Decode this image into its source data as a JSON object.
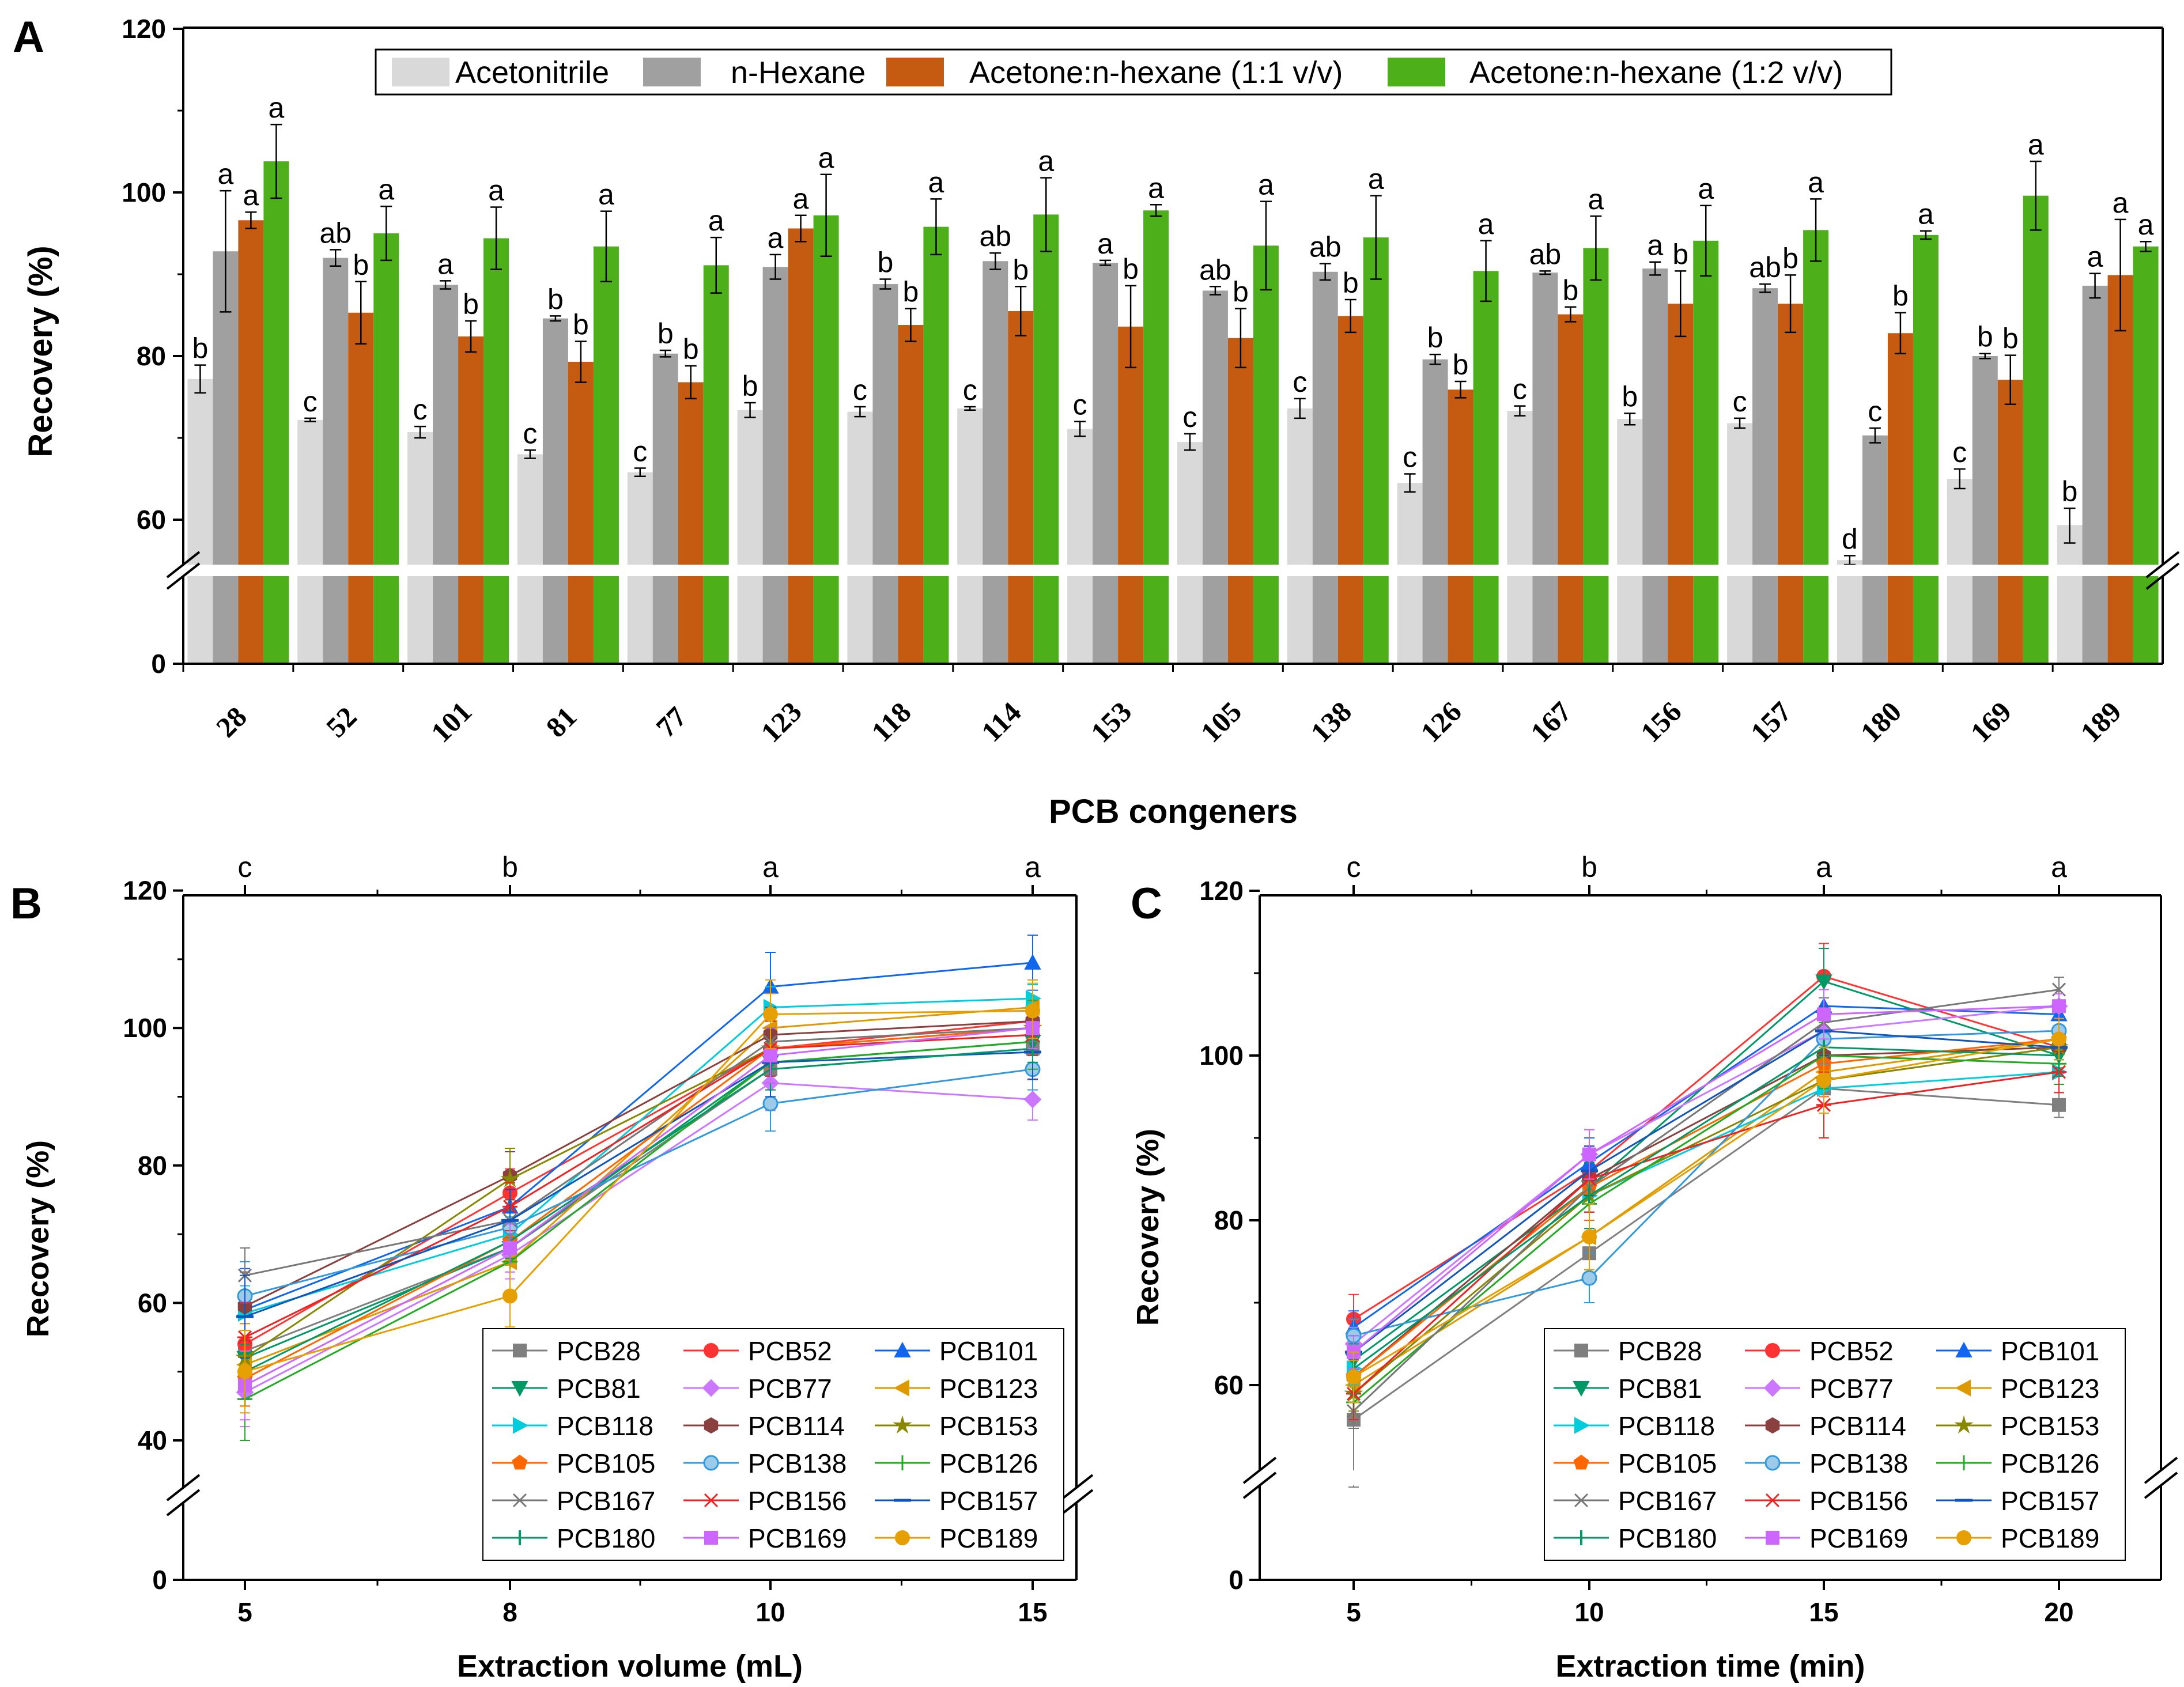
{
  "chart_data": [
    {
      "panel": "A",
      "type": "bar",
      "xlabel": "PCB congeners",
      "ylabel": "Recovery (%)",
      "ylim": [
        0,
        120
      ],
      "axis_break": [
        0,
        55
      ],
      "yticks": [
        0,
        60,
        80,
        100,
        120
      ],
      "categories": [
        "28",
        "52",
        "101",
        "81",
        "77",
        "123",
        "118",
        "114",
        "153",
        "105",
        "138",
        "126",
        "167",
        "156",
        "157",
        "180",
        "169",
        "189"
      ],
      "legend": {
        "position": "top-center"
      },
      "series": [
        {
          "name": "Acetonitrile",
          "color": "#d9d9d9",
          "values": [
            77.2,
            72.2,
            70.7,
            68.0,
            65.8,
            73.4,
            73.2,
            73.6,
            71.1,
            69.5,
            73.6,
            64.5,
            73.3,
            72.3,
            71.8,
            55.5,
            65.0,
            59.4
          ],
          "errors": [
            1.7,
            0.2,
            0.7,
            0.5,
            0.5,
            0.9,
            0.6,
            0.2,
            0.9,
            1.0,
            1.2,
            1.1,
            0.6,
            0.7,
            0.6,
            0.5,
            1.2,
            2.0
          ],
          "letters": [
            "b",
            "c",
            "c",
            "c",
            "c",
            "b",
            "c",
            "c",
            "c",
            "c",
            "c",
            "c",
            "c",
            "b",
            "c",
            "d",
            "c",
            "b"
          ]
        },
        {
          "name": "n-Hexane",
          "color": "#a0a0a0",
          "values": [
            92.8,
            92.0,
            88.7,
            84.6,
            80.3,
            90.9,
            88.8,
            91.6,
            91.4,
            88.0,
            90.3,
            79.6,
            90.2,
            90.7,
            88.3,
            70.3,
            80.0,
            88.6
          ],
          "errors": [
            7.4,
            1.0,
            0.5,
            0.3,
            0.4,
            1.5,
            0.6,
            1.0,
            0.3,
            0.5,
            1.0,
            0.6,
            0.2,
            0.8,
            0.5,
            0.9,
            0.3,
            1.5
          ],
          "letters": [
            "a",
            "ab",
            "a",
            "b",
            "b",
            "a",
            "b",
            "ab",
            "a",
            "ab",
            "ab",
            "b",
            "ab",
            "a",
            "ab",
            "c",
            "b",
            "a"
          ]
        },
        {
          "name": "Acetone:n-hexane (1:1 v/v)",
          "color": "#c55a11",
          "values": [
            96.6,
            85.3,
            82.4,
            79.3,
            76.8,
            95.6,
            83.8,
            85.5,
            83.6,
            82.2,
            84.9,
            75.9,
            85.1,
            86.4,
            86.4,
            82.8,
            77.1,
            89.9
          ],
          "errors": [
            1.0,
            3.8,
            1.9,
            2.5,
            2.0,
            1.6,
            2.0,
            3.0,
            5.0,
            3.6,
            2.0,
            1.0,
            0.9,
            4.0,
            3.5,
            2.5,
            3.0,
            6.8
          ],
          "letters": [
            "a",
            "b",
            "b",
            "b",
            "b",
            "a",
            "b",
            "b",
            "b",
            "b",
            "b",
            "b",
            "b",
            "b",
            "b",
            "b",
            "b",
            "a"
          ]
        },
        {
          "name": "Acetone:n-hexane (1:2 v/v)",
          "color": "#4daf1a",
          "values": [
            103.8,
            95.0,
            94.4,
            93.4,
            91.1,
            97.2,
            95.8,
            97.3,
            97.8,
            93.5,
            94.5,
            90.4,
            93.2,
            94.1,
            95.4,
            94.8,
            99.6,
            93.4
          ],
          "errors": [
            4.5,
            3.3,
            3.8,
            4.3,
            3.4,
            5.0,
            3.4,
            4.5,
            0.7,
            5.4,
            5.1,
            3.7,
            3.9,
            4.3,
            3.8,
            0.5,
            4.2,
            0.6
          ],
          "letters": [
            "a",
            "a",
            "a",
            "a",
            "a",
            "a",
            "a",
            "a",
            "a",
            "a",
            "a",
            "a",
            "a",
            "a",
            "a",
            "a",
            "a",
            "a"
          ]
        }
      ]
    },
    {
      "panel": "B",
      "type": "line",
      "xlabel": "Extraction volume (mL)",
      "ylabel": "Recovery (%)",
      "x": [
        "5",
        "8",
        "10",
        "15"
      ],
      "top_letters": [
        "c",
        "b",
        "a",
        "a"
      ],
      "ylim": [
        0,
        120
      ],
      "axis_break": [
        0,
        35
      ],
      "yticks": [
        0,
        40,
        60,
        80,
        100,
        120
      ],
      "legend": {
        "position": "bottom-right"
      },
      "series": [
        {
          "name": "PCB28",
          "color": "#7f7f7f",
          "marker": "square",
          "values": [
            53,
            68,
            94,
            97
          ]
        },
        {
          "name": "PCB52",
          "color": "#ff3333",
          "marker": "circle",
          "values": [
            54,
            76,
            97,
            101
          ]
        },
        {
          "name": "PCB101",
          "color": "#1166ee",
          "marker": "triangle-up",
          "values": [
            59,
            74,
            106,
            109.5
          ]
        },
        {
          "name": "PCB81",
          "color": "#009966",
          "marker": "triangle-down",
          "values": [
            52,
            68,
            95,
            98
          ]
        },
        {
          "name": "PCB77",
          "color": "#cc77ff",
          "marker": "diamond",
          "values": [
            47,
            67,
            92,
            89.6
          ]
        },
        {
          "name": "PCB123",
          "color": "#dd9900",
          "marker": "triangle-left",
          "values": [
            51,
            66,
            100,
            103
          ]
        },
        {
          "name": "PCB118",
          "color": "#00ccdd",
          "marker": "triangle-right",
          "values": [
            58.5,
            70,
            103,
            104.3
          ]
        },
        {
          "name": "PCB114",
          "color": "#8b4040",
          "marker": "hexagon",
          "values": [
            59.5,
            78.5,
            99,
            101
          ]
        },
        {
          "name": "PCB153",
          "color": "#888800",
          "marker": "star",
          "values": [
            52,
            78,
            97,
            100
          ]
        },
        {
          "name": "PCB105",
          "color": "#ff6600",
          "marker": "pentagon",
          "values": [
            49,
            69,
            97,
            100
          ]
        },
        {
          "name": "PCB138",
          "color": "#3399dd",
          "marker": "sphere",
          "values": [
            61,
            71,
            89,
            94
          ]
        },
        {
          "name": "PCB126",
          "color": "#22aa22",
          "marker": "plus",
          "values": [
            46,
            66,
            95,
            98
          ]
        },
        {
          "name": "PCB167",
          "color": "#777777",
          "marker": "x",
          "values": [
            64,
            72,
            98,
            100
          ]
        },
        {
          "name": "PCB156",
          "color": "#ee2222",
          "marker": "asterisk",
          "values": [
            55,
            74,
            97,
            99
          ]
        },
        {
          "name": "PCB157",
          "color": "#1155bb",
          "marker": "dash",
          "values": [
            58,
            72,
            95,
            96.5
          ]
        },
        {
          "name": "PCB180",
          "color": "#009966",
          "marker": "bar",
          "values": [
            50,
            69,
            94,
            97
          ]
        },
        {
          "name": "PCB169",
          "color": "#cc66ff",
          "marker": "square",
          "values": [
            48,
            68,
            96,
            100
          ]
        },
        {
          "name": "PCB189",
          "color": "#e69f00",
          "marker": "circle",
          "values": [
            50,
            61,
            102,
            102.5
          ]
        }
      ]
    },
    {
      "panel": "C",
      "type": "line",
      "xlabel": "Extraction time (min)",
      "ylabel": "Recovery (%)",
      "x": [
        "5",
        "10",
        "15",
        "20"
      ],
      "top_letters": [
        "c",
        "b",
        "a",
        "a"
      ],
      "ylim": [
        0,
        120
      ],
      "axis_break": [
        0,
        55
      ],
      "yticks": [
        0,
        60,
        80,
        100,
        120
      ],
      "legend": {
        "position": "bottom-right"
      },
      "series": [
        {
          "name": "PCB28",
          "color": "#7f7f7f",
          "marker": "square",
          "values": [
            56,
            76,
            96,
            94
          ]
        },
        {
          "name": "PCB52",
          "color": "#ff3333",
          "marker": "circle",
          "values": [
            68,
            86,
            109.6,
            101
          ]
        },
        {
          "name": "PCB101",
          "color": "#1166ee",
          "marker": "triangle-up",
          "values": [
            67,
            87,
            106,
            105
          ]
        },
        {
          "name": "PCB81",
          "color": "#009966",
          "marker": "triangle-down",
          "values": [
            63,
            84,
            109,
            100
          ]
        },
        {
          "name": "PCB77",
          "color": "#cc77ff",
          "marker": "diamond",
          "values": [
            65,
            88,
            103,
            106
          ]
        },
        {
          "name": "PCB123",
          "color": "#dd9900",
          "marker": "triangle-left",
          "values": [
            60,
            78,
            98,
            102
          ]
        },
        {
          "name": "PCB118",
          "color": "#00ccdd",
          "marker": "triangle-right",
          "values": [
            62,
            83,
            96,
            98
          ]
        },
        {
          "name": "PCB114",
          "color": "#8b4040",
          "marker": "hexagon",
          "values": [
            61,
            85,
            100,
            101
          ]
        },
        {
          "name": "PCB153",
          "color": "#888800",
          "marker": "star",
          "values": [
            59,
            83,
            97,
            101
          ]
        },
        {
          "name": "PCB105",
          "color": "#ff6600",
          "marker": "pentagon",
          "values": [
            61,
            84,
            99,
            102
          ]
        },
        {
          "name": "PCB138",
          "color": "#3399dd",
          "marker": "sphere",
          "values": [
            66,
            73,
            102,
            103
          ]
        },
        {
          "name": "PCB126",
          "color": "#22aa22",
          "marker": "plus",
          "values": [
            58,
            82,
            100,
            99
          ]
        },
        {
          "name": "PCB167",
          "color": "#777777",
          "marker": "x",
          "values": [
            57,
            84,
            104,
            108
          ]
        },
        {
          "name": "PCB156",
          "color": "#ee2222",
          "marker": "asterisk",
          "values": [
            59,
            85,
            94,
            98
          ]
        },
        {
          "name": "PCB157",
          "color": "#1155bb",
          "marker": "dash",
          "values": [
            64,
            86,
            103,
            101
          ]
        },
        {
          "name": "PCB180",
          "color": "#009966",
          "marker": "bar",
          "values": [
            62,
            83,
            101,
            100
          ]
        },
        {
          "name": "PCB169",
          "color": "#cc66ff",
          "marker": "square",
          "values": [
            64,
            88,
            105,
            106
          ]
        },
        {
          "name": "PCB189",
          "color": "#e69f00",
          "marker": "circle",
          "values": [
            61,
            78,
            97,
            102
          ]
        }
      ]
    }
  ]
}
